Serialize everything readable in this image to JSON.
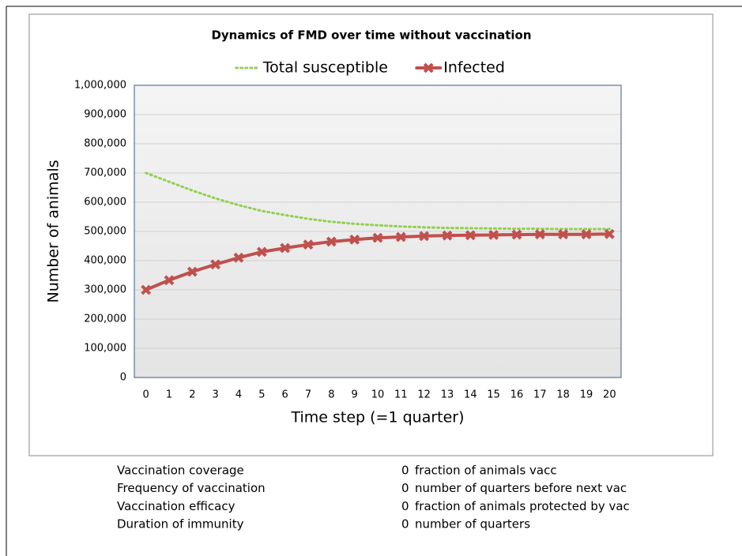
{
  "chart_data": {
    "type": "line",
    "title": "Dynamics of FMD over time without vaccination",
    "x_label": "Time step  (=1 quarter)",
    "y_label": "Number of animals",
    "categories": [
      "0",
      "1",
      "2",
      "3",
      "4",
      "5",
      "6",
      "7",
      "8",
      "9",
      "10",
      "11",
      "12",
      "13",
      "14",
      "15",
      "16",
      "17",
      "18",
      "19",
      "20"
    ],
    "series": [
      {
        "name": "Total susceptible",
        "color": "#92d050",
        "style": "dotted",
        "marker": "none",
        "values": [
          700000,
          670000,
          640000,
          613000,
          590000,
          570000,
          556000,
          543000,
          533000,
          526000,
          521000,
          517000,
          514000,
          512000,
          511000,
          510000,
          509000,
          509000,
          508000,
          508000,
          508000
        ]
      },
      {
        "name": "Infected",
        "color": "#c0504d",
        "style": "solid",
        "marker": "x",
        "values": [
          300000,
          333000,
          362000,
          387000,
          410000,
          430000,
          443000,
          455000,
          465000,
          472000,
          478000,
          481000,
          484000,
          486000,
          487000,
          488000,
          489000,
          490000,
          490000,
          490000,
          491000
        ]
      }
    ],
    "ylim": [
      0,
      1000000
    ],
    "yticks": [
      0,
      {
        "value": 100000,
        "label": "100,000"
      },
      {
        "value": 200000,
        "label": "200,000"
      },
      {
        "value": 300000,
        "label": "300,000"
      },
      {
        "value": 400000,
        "label": "400,000"
      },
      {
        "value": 500000,
        "label": "500,000"
      },
      {
        "value": 600000,
        "label": "600,000"
      },
      {
        "value": 700000,
        "label": "700,000"
      },
      {
        "value": 800000,
        "label": "800,000"
      },
      {
        "value": 900000,
        "label": "900,000"
      },
      {
        "value": 1000000,
        "label": "1,000,000"
      }
    ],
    "grid": true,
    "legend": "top"
  },
  "parameters": [
    {
      "label": "Vaccination coverage",
      "value": 0,
      "unit": "fraction of animals vacc"
    },
    {
      "label": "Frequency of vaccination",
      "value": 0,
      "unit": "number of quarters before next vac"
    },
    {
      "label": "Vaccination efficacy",
      "value": 0,
      "unit": "fraction of animals protected by vac"
    },
    {
      "label": "Duration of immunity",
      "value": 0,
      "unit": "number of quarters"
    }
  ]
}
